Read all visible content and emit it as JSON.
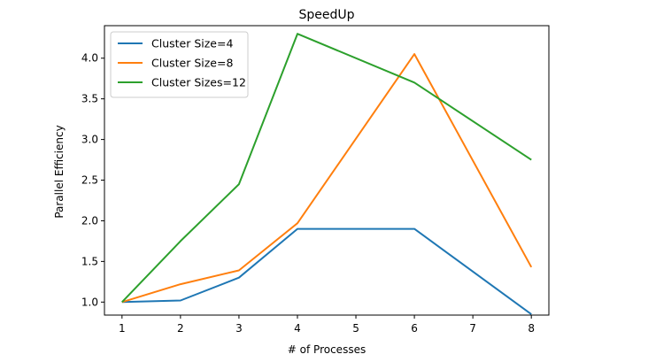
{
  "chart_data": {
    "type": "line",
    "title": "SpeedUp",
    "xlabel": "# of Processes",
    "ylabel": "Parallel Efficiency",
    "x": [
      1,
      2,
      3,
      4,
      6,
      8
    ],
    "xticks": [
      1,
      2,
      3,
      4,
      5,
      6,
      7,
      8
    ],
    "yticks": [
      1.0,
      1.5,
      2.0,
      2.5,
      3.0,
      3.5,
      4.0
    ],
    "xlim": [
      0.7,
      8.3
    ],
    "ylim": [
      0.84,
      4.4
    ],
    "grid": false,
    "legend": "top-left",
    "series": [
      {
        "name": "Cluster Size=4",
        "color": "#1f77b4",
        "values": [
          1.0,
          1.02,
          1.3,
          1.9,
          1.9,
          0.85
        ]
      },
      {
        "name": "Cluster Size=8",
        "color": "#ff7f0e",
        "values": [
          1.0,
          1.22,
          1.39,
          1.97,
          4.05,
          1.43
        ]
      },
      {
        "name": "Cluster Sizes=12",
        "color": "#2ca02c",
        "values": [
          1.0,
          1.75,
          2.45,
          4.3,
          3.7,
          2.75
        ]
      }
    ]
  }
}
